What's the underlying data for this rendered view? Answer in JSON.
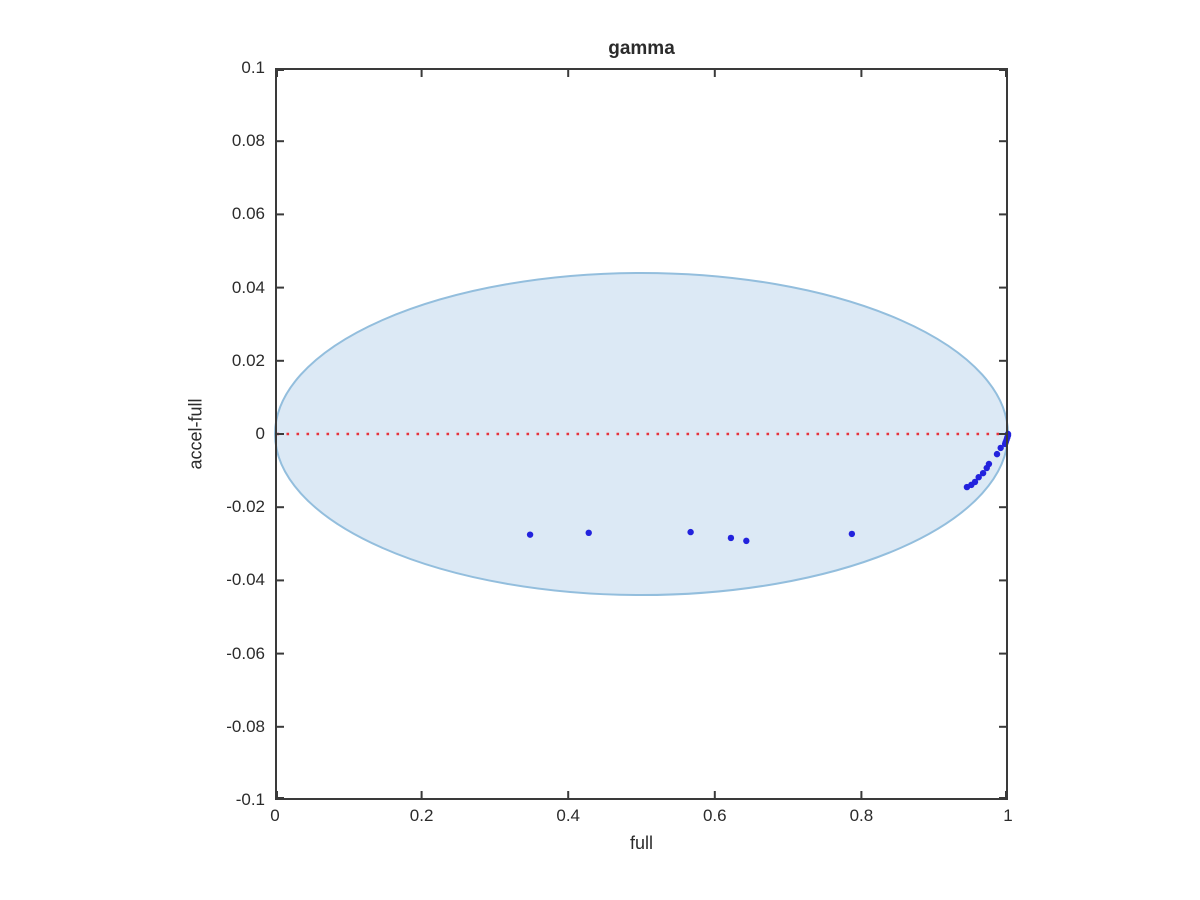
{
  "figure": {
    "background": "#ffffff"
  },
  "chart_data": {
    "type": "scatter",
    "title": "gamma",
    "xlabel": "full",
    "ylabel": "accel-full",
    "xlim": [
      0,
      1
    ],
    "ylim": [
      -0.1,
      0.1
    ],
    "xtick_values": [
      0,
      0.2,
      0.4,
      0.6,
      0.8,
      1
    ],
    "xtick_labels": [
      "0",
      "0.2",
      "0.4",
      "0.6",
      "0.8",
      "1"
    ],
    "ytick_values": [
      0.1,
      0.08,
      0.06,
      0.04,
      0.02,
      0,
      -0.02,
      -0.04,
      -0.06,
      -0.08,
      -0.1
    ],
    "ytick_labels": [
      "0.1",
      "0.08",
      "0.06",
      "0.04",
      "0.02",
      "0",
      "-0.02",
      "-0.04",
      "-0.06",
      "-0.08",
      "-0.1"
    ],
    "grid": false,
    "legend": false,
    "axis_color": "#3a3a3a",
    "text_color": "#2b2b2b",
    "ellipse": {
      "cx": 0.5,
      "cy": 0,
      "rx": 0.5,
      "ry": 0.044,
      "fill": "#dce9f5",
      "stroke": "#93bedd"
    },
    "zero_line": {
      "y": 0,
      "color": "#e8323c",
      "style": "dotted"
    },
    "series": [
      {
        "marker": "dot",
        "color": "#2222dd",
        "points": [
          [
            0.348,
            -0.0275
          ],
          [
            0.428,
            -0.027
          ],
          [
            0.567,
            -0.0268
          ],
          [
            0.622,
            -0.0284
          ],
          [
            0.643,
            -0.0292
          ],
          [
            0.787,
            -0.0273
          ],
          [
            0.944,
            -0.0145
          ],
          [
            0.95,
            -0.0139
          ],
          [
            0.955,
            -0.0131
          ],
          [
            0.96,
            -0.0118
          ],
          [
            0.966,
            -0.0107
          ],
          [
            0.971,
            -0.0093
          ],
          [
            0.974,
            -0.0082
          ],
          [
            0.985,
            -0.0055
          ],
          [
            0.99,
            -0.0038
          ],
          [
            0.996,
            -0.0027
          ],
          [
            0.997,
            -0.0022
          ],
          [
            0.998,
            -0.0016
          ],
          [
            0.999,
            -0.001
          ],
          [
            1.0,
            -0.0004
          ],
          [
            1.0,
            0.0
          ]
        ]
      }
    ]
  }
}
